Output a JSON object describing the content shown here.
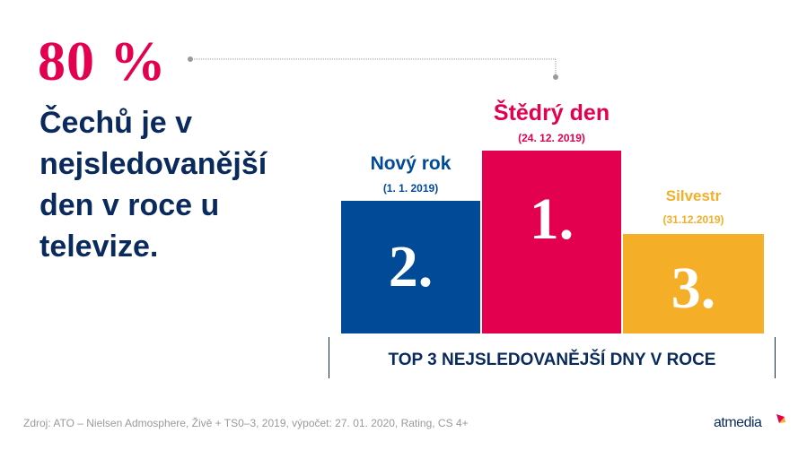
{
  "headline": {
    "percent": "80 %",
    "text": "Čechů je v nejsledovanější den v roce u televize."
  },
  "ranking": {
    "items": [
      {
        "rank": "1.",
        "name": "Štědrý den",
        "date": "(24. 12. 2019)"
      },
      {
        "rank": "2.",
        "name": "Nový rok",
        "date": "(1. 1. 2019)"
      },
      {
        "rank": "3.",
        "name": "Silvestr",
        "date": "(31.12.2019)"
      }
    ],
    "axis_label": "TOP 3 NEJSLEDOVANĚJŠÍ DNY V ROCE"
  },
  "footer": {
    "source": "Zdroj: ATO  – Nielsen Admosphere, Živě + TS0–3, 2019, výpočet:  27. 01. 2020,  Rating, CS 4+",
    "logo_text": "atmedia"
  },
  "colors": {
    "red": "#e2004f",
    "blue": "#004a97",
    "yellow": "#f4ae27",
    "navy": "#0a2a5e"
  }
}
